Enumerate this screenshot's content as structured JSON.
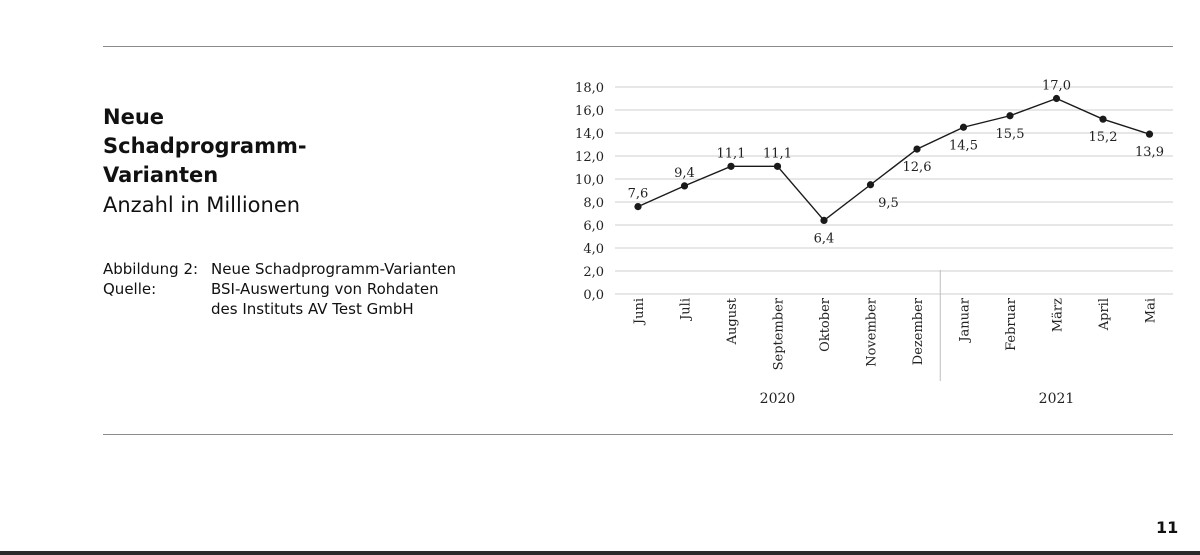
{
  "page": {
    "title_line1": "Neue",
    "title_line2": "Schadprogramm-",
    "title_line3": "Varianten",
    "subtitle": "Anzahl in Millionen",
    "caption_label": "Abbildung 2:",
    "caption_text": "Neue Schadprogramm-Varianten",
    "source_label": "Quelle:",
    "source_line1": "BSI-Auswertung von Rohdaten",
    "source_line2": "des Instituts AV Test GmbH",
    "page_number": "11"
  },
  "chart_data": {
    "type": "line",
    "categories": [
      "Juni",
      "Juli",
      "August",
      "September",
      "Oktober",
      "November",
      "Dezember",
      "Januar",
      "Februar",
      "März",
      "April",
      "Mai"
    ],
    "values": [
      7.6,
      9.4,
      11.1,
      11.1,
      6.4,
      9.5,
      12.6,
      14.5,
      15.5,
      17.0,
      15.2,
      13.9
    ],
    "value_labels": [
      "7,6",
      "9,4",
      "11,1",
      "11,1",
      "6,4",
      "9,5",
      "12,6",
      "14,5",
      "15,5",
      "17,0",
      "15,2",
      "13,9"
    ],
    "y_ticks": [
      "0,0",
      "2,0",
      "4,0",
      "6,0",
      "8,0",
      "10,0",
      "12,0",
      "14,0",
      "16,0",
      "18,0"
    ],
    "ylim": [
      0,
      18
    ],
    "groups": [
      {
        "label": "2020",
        "categories": [
          "Juni",
          "Juli",
          "August",
          "September",
          "Oktober",
          "November",
          "Dezember"
        ]
      },
      {
        "label": "2021",
        "categories": [
          "Januar",
          "Februar",
          "März",
          "April",
          "Mai"
        ]
      }
    ],
    "grid": true,
    "series_color": "#1a1a1a",
    "grid_color": "#cfcfcf"
  }
}
